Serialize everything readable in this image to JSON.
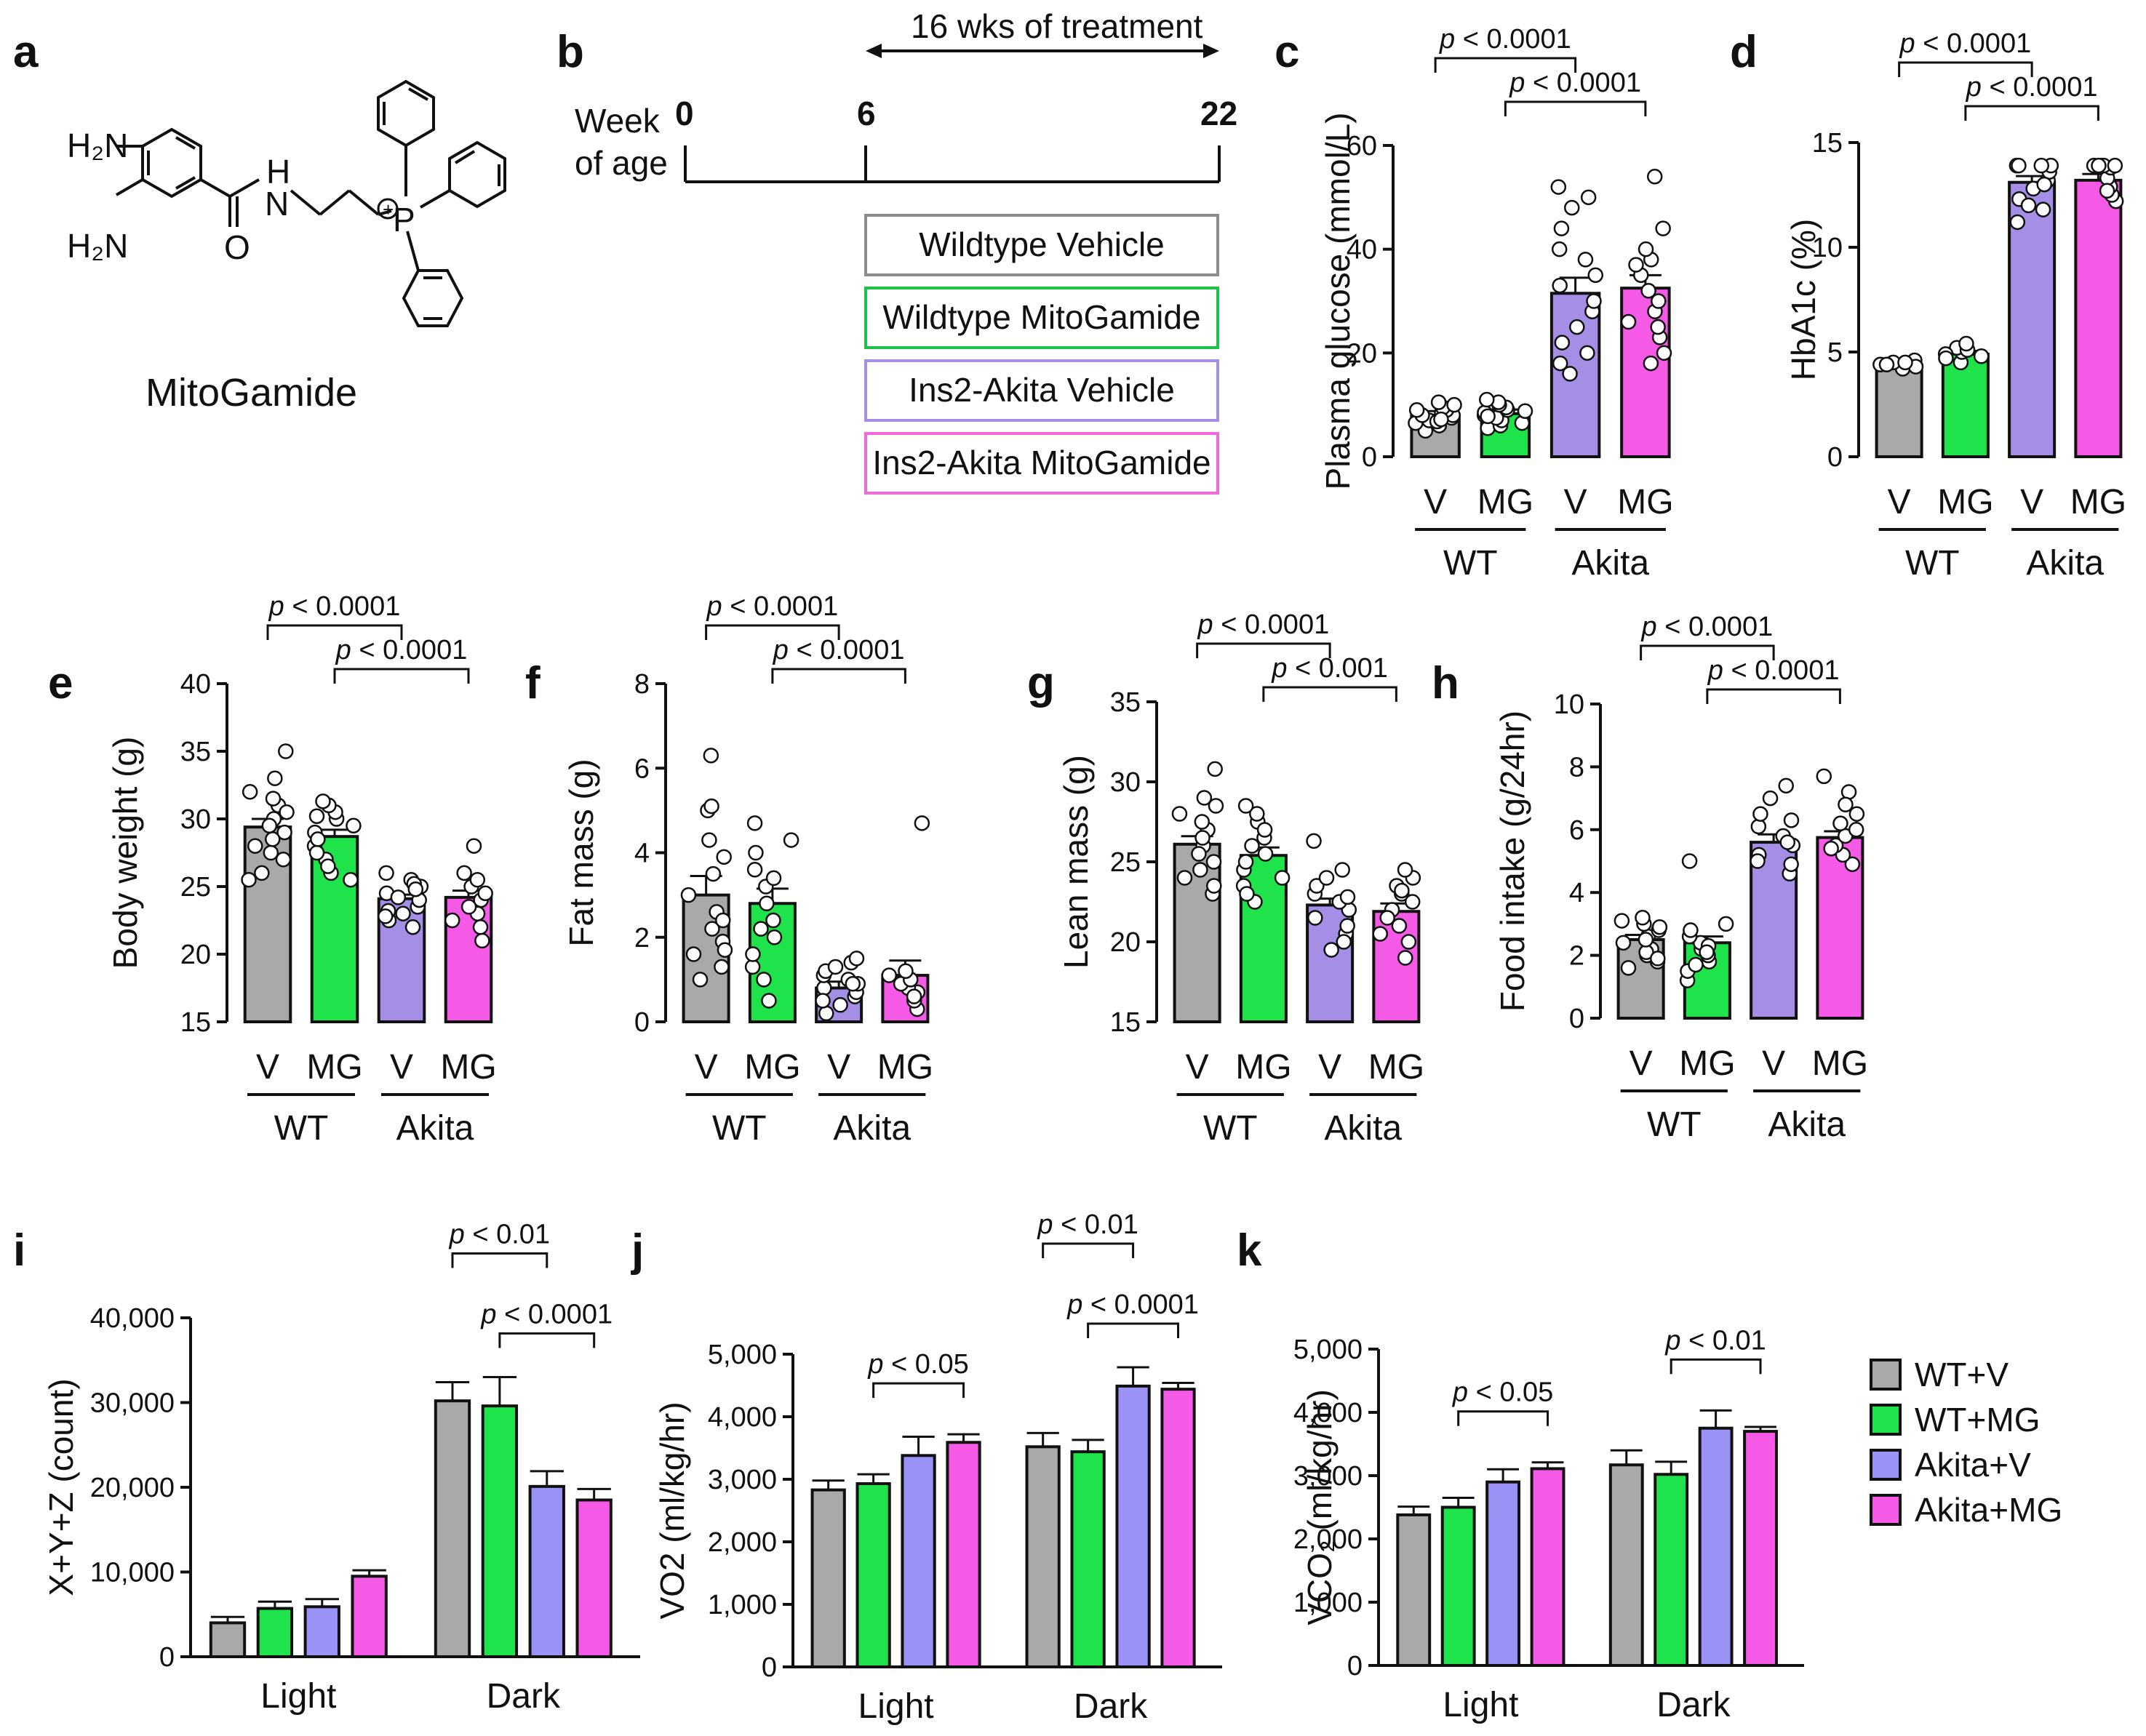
{
  "figure": {
    "colors": {
      "WT_V": "#a9a9a9",
      "WT_MG": "#1ee34a",
      "Akita_V": "#a58ee6",
      "Akita_MG": "#f55ae6",
      "Akita_V_bar": "#9a93f5"
    },
    "panel_a": {
      "label": "a",
      "compound_name": "MitoGamide",
      "atom_labels": {
        "amine1": "H₂N",
        "amine2": "H₂N",
        "nh_h": "H",
        "nh_n": "N",
        "oxygen": "O",
        "phosphorus": "P",
        "charge": "+"
      }
    },
    "panel_b": {
      "label": "b",
      "row_label_line1": "Week",
      "row_label_line2": "of age",
      "weeks": [
        "0",
        "6",
        "22"
      ],
      "treatment_label": "16 wks of treatment",
      "groups": [
        {
          "label": "Wildtype Vehicle",
          "color": "#8c8c8c"
        },
        {
          "label": "Wildtype MitoGamide",
          "color": "#1ec24a"
        },
        {
          "label": "Ins2-Akita Vehicle",
          "color": "#a58ee6"
        },
        {
          "label": "Ins2-Akita MitoGamide",
          "color": "#f06ad8"
        }
      ]
    },
    "legend": [
      "WT+V",
      "WT+MG",
      "Akita+V",
      "Akita+MG"
    ]
  },
  "chart_data": [
    {
      "panel": "c",
      "type": "bar",
      "ylabel": "Plasma glucose (mmol/L)",
      "ylim": [
        0,
        60
      ],
      "yticks": [
        "0",
        "20",
        "40",
        "60"
      ],
      "categories": [
        "V",
        "MG",
        "V",
        "MG"
      ],
      "groups": [
        "WT",
        "Akita"
      ],
      "values": [
        8,
        8.3,
        31.5,
        32.5
      ],
      "errors": [
        0.8,
        0.8,
        3,
        2.5
      ],
      "points": [
        [
          5,
          6,
          6.5,
          7,
          7.5,
          8,
          8,
          8.5,
          9,
          9,
          9.5,
          10,
          10.5,
          6.8,
          7.2
        ],
        [
          5.5,
          6,
          6.5,
          7,
          7.5,
          8,
          8.5,
          9,
          9.5,
          10,
          10.5,
          11,
          7.8,
          8.8
        ],
        [
          16,
          18,
          20,
          22,
          25,
          28,
          30,
          33,
          35,
          38,
          40,
          44,
          48,
          50,
          52
        ],
        [
          18,
          20,
          23,
          25,
          28,
          30,
          32,
          35,
          38,
          40,
          44,
          54,
          26,
          37
        ]
      ],
      "comparisons": [
        {
          "from": 0,
          "to": 2,
          "label": "p < 0.0001"
        },
        {
          "from": 1,
          "to": 3,
          "label": "p < 0.0001"
        }
      ]
    },
    {
      "panel": "d",
      "type": "bar",
      "ylabel": "HbA1c (%)",
      "ylim": [
        0,
        15
      ],
      "yticks": [
        "0",
        "5",
        "10",
        "15"
      ],
      "categories": [
        "V",
        "MG",
        "V",
        "MG"
      ],
      "groups": [
        "WT",
        "Akita"
      ],
      "values": [
        4.4,
        4.9,
        13.1,
        13.2
      ],
      "errors": [
        0.1,
        0.15,
        0.3,
        0.3
      ],
      "points": [
        [
          4.2,
          4.4,
          4.5,
          4.6,
          4.4,
          4.3,
          4.5
        ],
        [
          4.5,
          4.8,
          5.0,
          5.2,
          4.9,
          4.7,
          5.1,
          5.4
        ],
        [
          11.2,
          11.8,
          12.3,
          12.8,
          13.2,
          13.6,
          13.9,
          13.9,
          13.9,
          13.9,
          13.9,
          12.0,
          13.0
        ],
        [
          12.2,
          12.5,
          12.9,
          13.3,
          13.8,
          13.9,
          13.9,
          13.9,
          13.9,
          13.9,
          12.7
        ]
      ],
      "comparisons": [
        {
          "from": 0,
          "to": 2,
          "label": "p < 0.0001"
        },
        {
          "from": 1,
          "to": 3,
          "label": "p < 0.0001"
        }
      ]
    },
    {
      "panel": "e",
      "type": "bar",
      "ylabel": "Body weight (g)",
      "ylim": [
        15,
        40
      ],
      "yticks": [
        "15",
        "20",
        "25",
        "30",
        "35",
        "40"
      ],
      "categories": [
        "V",
        "MG",
        "V",
        "MG"
      ],
      "groups": [
        "WT",
        "Akita"
      ],
      "values": [
        29.4,
        28.7,
        24.1,
        24.2
      ],
      "errors": [
        0.6,
        0.5,
        0.3,
        0.5
      ],
      "points": [
        [
          25.5,
          26,
          27,
          28,
          29,
          30,
          31,
          32,
          33,
          35,
          27.5,
          29.5,
          31.5,
          28.5,
          30.5
        ],
        [
          25.5,
          26,
          27,
          28,
          29,
          30,
          30.5,
          31,
          26.5,
          27.5,
          28.5,
          29.5,
          30.2,
          31.3
        ],
        [
          22,
          22.5,
          23,
          23.5,
          24,
          24.5,
          25,
          25.5,
          26,
          23.2,
          24.2,
          25.2,
          22.8,
          24.8
        ],
        [
          21,
          22,
          23,
          24,
          25,
          26,
          28,
          23.5,
          24.5,
          25.5,
          22.5
        ]
      ],
      "comparisons": [
        {
          "from": 0,
          "to": 2,
          "label": "p < 0.0001"
        },
        {
          "from": 1,
          "to": 3,
          "label": "p < 0.0001"
        }
      ]
    },
    {
      "panel": "f",
      "type": "bar",
      "ylabel": "Fat mass (g)",
      "ylim": [
        0,
        8
      ],
      "yticks": [
        "0",
        "2",
        "4",
        "6",
        "8"
      ],
      "categories": [
        "V",
        "MG",
        "V",
        "MG"
      ],
      "groups": [
        "WT",
        "Akita"
      ],
      "values": [
        3.0,
        2.8,
        0.8,
        1.1
      ],
      "errors": [
        0.45,
        0.35,
        0.15,
        0.35
      ],
      "points": [
        [
          1.0,
          1.3,
          1.6,
          1.9,
          2.2,
          2.6,
          3.0,
          3.5,
          3.9,
          4.3,
          5.0,
          5.1,
          6.3,
          1.7,
          2.4
        ],
        [
          0.5,
          1.0,
          1.3,
          1.6,
          2.0,
          2.4,
          2.8,
          3.2,
          3.6,
          4.0,
          4.3,
          4.7,
          2.2,
          3.4
        ],
        [
          0.2,
          0.4,
          0.6,
          0.7,
          0.8,
          0.9,
          1.0,
          1.1,
          1.2,
          1.3,
          1.4,
          0.5,
          0.9,
          1.5
        ],
        [
          0.3,
          0.5,
          0.7,
          0.8,
          0.9,
          1.0,
          1.2,
          4.7,
          0.6,
          1.1
        ]
      ],
      "comparisons": [
        {
          "from": 0,
          "to": 2,
          "label": "p < 0.0001"
        },
        {
          "from": 1,
          "to": 3,
          "label": "p < 0.0001"
        }
      ]
    },
    {
      "panel": "g",
      "type": "bar",
      "ylabel": "Lean mass (g)",
      "ylim": [
        15,
        35
      ],
      "yticks": [
        "15",
        "20",
        "25",
        "30",
        "35"
      ],
      "categories": [
        "V",
        "MG",
        "V",
        "MG"
      ],
      "groups": [
        "WT",
        "Akita"
      ],
      "values": [
        26.1,
        25.4,
        22.3,
        21.9
      ],
      "errors": [
        0.5,
        0.5,
        0.4,
        0.5
      ],
      "points": [
        [
          23,
          24,
          25,
          26,
          27,
          28,
          29,
          30.8,
          24.5,
          25.5,
          26.5,
          27.5,
          28.5,
          23.5
        ],
        [
          22.5,
          23.5,
          24.5,
          25.5,
          26.5,
          27.5,
          28,
          28.5,
          23,
          24,
          25,
          26,
          27
        ],
        [
          19.5,
          20.5,
          21,
          21.5,
          22,
          22.5,
          23,
          23.5,
          24,
          24.5,
          26.3,
          20,
          22.8
        ],
        [
          19,
          20,
          21,
          22,
          23,
          23.5,
          24,
          24.5,
          20.5,
          21.5,
          22.5,
          23.2
        ]
      ],
      "comparisons": [
        {
          "from": 0,
          "to": 2,
          "label": "p < 0.0001"
        },
        {
          "from": 1,
          "to": 3,
          "label": "p < 0.001"
        }
      ]
    },
    {
      "panel": "h",
      "type": "bar",
      "ylabel": "Food intake (g/24hr)",
      "ylim": [
        0,
        10
      ],
      "yticks": [
        "0",
        "2",
        "4",
        "6",
        "8",
        "10"
      ],
      "categories": [
        "V",
        "MG",
        "V",
        "MG"
      ],
      "groups": [
        "WT",
        "Akita"
      ],
      "values": [
        2.5,
        2.4,
        5.6,
        5.75
      ],
      "errors": [
        0.15,
        0.2,
        0.25,
        0.2
      ],
      "points": [
        [
          1.6,
          1.8,
          2.0,
          2.2,
          2.4,
          2.6,
          2.8,
          3.0,
          3.2,
          2.1,
          2.5,
          2.9,
          1.9,
          3.1
        ],
        [
          1.2,
          1.5,
          1.8,
          2.0,
          2.2,
          2.4,
          2.6,
          2.8,
          3.0,
          5.0,
          1.7,
          2.3,
          2.1
        ],
        [
          4.6,
          4.9,
          5.2,
          5.5,
          5.8,
          6.1,
          6.5,
          7.0,
          7.4,
          5.0,
          5.6,
          6.3
        ],
        [
          4.9,
          5.2,
          5.5,
          5.8,
          6.2,
          6.5,
          7.2,
          7.7,
          5.4,
          6.0,
          6.8
        ]
      ],
      "comparisons": [
        {
          "from": 0,
          "to": 2,
          "label": "p < 0.0001"
        },
        {
          "from": 1,
          "to": 3,
          "label": "p < 0.0001"
        }
      ]
    },
    {
      "panel": "i",
      "type": "bar",
      "ylabel": "X+Y+Z (count)",
      "ylim": [
        0,
        40000
      ],
      "yticks": [
        "0",
        "10,000",
        "20,000",
        "30,000",
        "40,000"
      ],
      "categories": [
        "Light",
        "Dark"
      ],
      "series": [
        "WT+V",
        "WT+MG",
        "Akita+V",
        "Akita+MG"
      ],
      "values": [
        [
          4000,
          5700,
          5900,
          9500
        ],
        [
          30200,
          29600,
          20100,
          18500
        ]
      ],
      "errors": [
        [
          700,
          800,
          900,
          700
        ],
        [
          2200,
          3400,
          1800,
          1300
        ]
      ],
      "comparisons": [
        {
          "cat": 1,
          "from": 0,
          "to": 2,
          "label": "p < 0.01"
        },
        {
          "cat": 1,
          "from": 1,
          "to": 3,
          "label": "p < 0.0001"
        }
      ]
    },
    {
      "panel": "j",
      "type": "bar",
      "ylabel": "VO2 (ml/kg/hr)",
      "ylim": [
        0,
        5000
      ],
      "yticks": [
        "0",
        "1,000",
        "2,000",
        "3,000",
        "4,000",
        "5,000"
      ],
      "categories": [
        "Light",
        "Dark"
      ],
      "series": [
        "WT+V",
        "WT+MG",
        "Akita+V",
        "Akita+MG"
      ],
      "values": [
        [
          2830,
          2930,
          3380,
          3590
        ],
        [
          3520,
          3440,
          4490,
          4440
        ]
      ],
      "errors": [
        [
          150,
          150,
          300,
          130
        ],
        [
          220,
          190,
          300,
          100
        ]
      ],
      "comparisons": [
        {
          "cat": 0,
          "from": 1,
          "to": 3,
          "label": "p < 0.05"
        },
        {
          "cat": 1,
          "from": 0,
          "to": 2,
          "label": "p < 0.01"
        },
        {
          "cat": 1,
          "from": 1,
          "to": 3,
          "label": "p < 0.0001"
        }
      ]
    },
    {
      "panel": "k",
      "type": "bar",
      "ylabel": "VCO₂ (ml/kg/hr)",
      "ylim": [
        0,
        5000
      ],
      "yticks": [
        "0",
        "1,000",
        "2,000",
        "3,000",
        "4,000",
        "5,000"
      ],
      "categories": [
        "Light",
        "Dark"
      ],
      "series": [
        "WT+V",
        "WT+MG",
        "Akita+V",
        "Akita+MG"
      ],
      "values": [
        [
          2380,
          2500,
          2900,
          3110
        ],
        [
          3170,
          3020,
          3750,
          3700
        ]
      ],
      "errors": [
        [
          130,
          150,
          200,
          100
        ],
        [
          230,
          200,
          280,
          70
        ]
      ],
      "comparisons": [
        {
          "cat": 0,
          "from": 1,
          "to": 3,
          "label": "p < 0.05"
        },
        {
          "cat": 1,
          "from": 1,
          "to": 3,
          "label": "p < 0.01"
        }
      ]
    }
  ]
}
